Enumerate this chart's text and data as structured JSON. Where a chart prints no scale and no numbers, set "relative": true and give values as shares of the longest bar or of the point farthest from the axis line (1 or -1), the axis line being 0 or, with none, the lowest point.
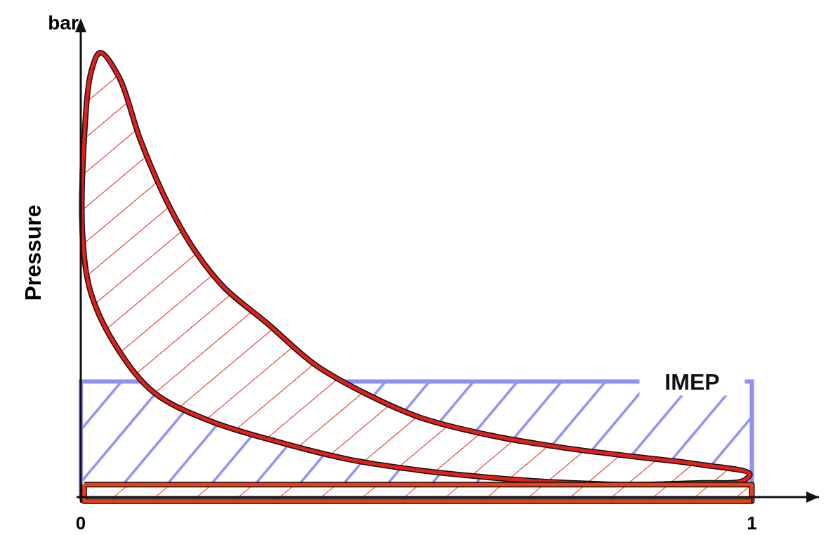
{
  "chart_data": {
    "type": "area",
    "ylabel": "Pressure",
    "annotations": [
      "bar"
    ],
    "relative": true,
    "xlim": [
      0,
      1.1
    ],
    "xticks": [
      0,
      1
    ],
    "tick_labels": "x",
    "grid": false,
    "marker": "none",
    "line_style": "solid",
    "series": [
      {
        "color": "#e0201b",
        "x": [
          0.029,
          0.057,
          0.089,
          0.13,
          0.172,
          0.214,
          0.277,
          0.35,
          0.423,
          0.506,
          0.61,
          0.715,
          0.819,
          0.924,
          0.997,
          0.986,
          0.924,
          0.819,
          0.715,
          0.61,
          0.506,
          0.402,
          0.297,
          0.193,
          0.11,
          0.057,
          0.016,
          0.003,
          0.005,
          0.016,
          0.029
        ],
        "values": [
          1.0,
          0.945,
          0.803,
          0.66,
          0.55,
          0.471,
          0.392,
          0.297,
          0.234,
          0.179,
          0.139,
          0.112,
          0.092,
          0.073,
          0.052,
          0.036,
          0.032,
          0.028,
          0.033,
          0.044,
          0.06,
          0.084,
          0.123,
          0.171,
          0.234,
          0.329,
          0.455,
          0.581,
          0.803,
          0.96,
          1.0
        ]
      },
      {
        "color": "#e8401a",
        "x": [
          0.005,
          1,
          1,
          0.005,
          0.005
        ],
        "values": [
          0.028,
          0.028,
          -0.009,
          -0.009,
          0.028
        ]
      }
    ],
    "bands": [
      {
        "axis": "y",
        "from": 0,
        "to": 0.26,
        "label": "IMEP",
        "color": "#8f8ff5"
      }
    ]
  }
}
